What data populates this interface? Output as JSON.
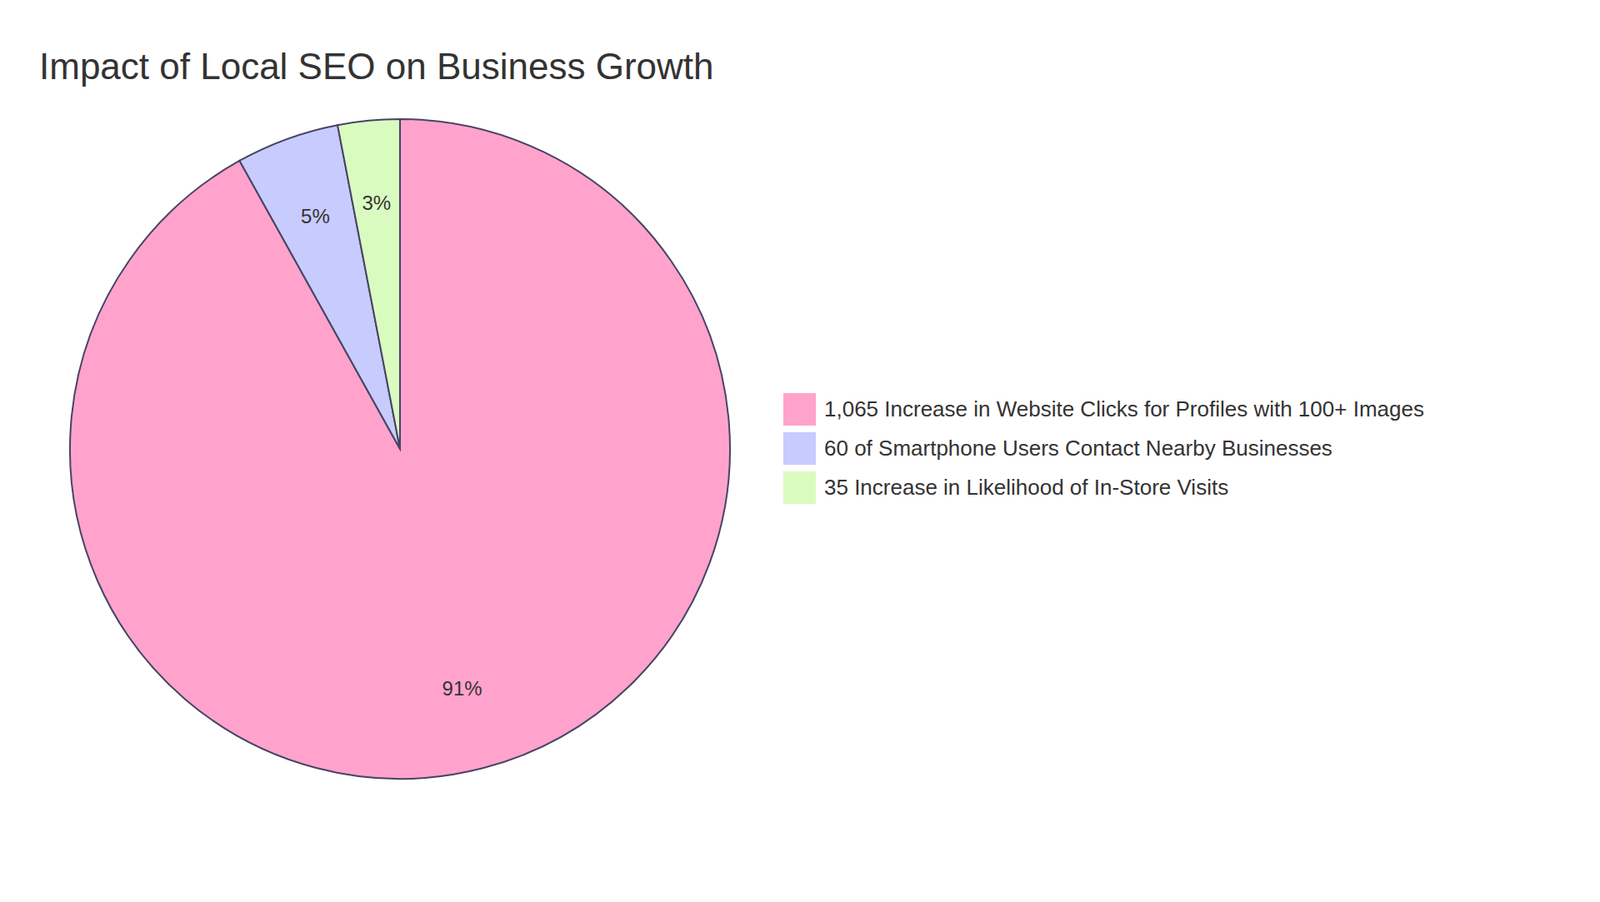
{
  "chart_data": {
    "type": "pie",
    "title": "Impact of Local SEO on Business Growth",
    "categories": [
      "1,065 Increase in Website Clicks for Profiles with 100+ Images",
      "60 of Smartphone Users Contact Nearby Businesses",
      "35 Increase in Likelihood of In-Store Visits"
    ],
    "values": [
      91,
      5,
      3
    ],
    "value_labels": [
      "91%",
      "5%",
      "3%"
    ],
    "colors": [
      "#ffa3cd",
      "#c8cbfe",
      "#dafbc0"
    ],
    "data_labels": true,
    "legend": "right"
  }
}
